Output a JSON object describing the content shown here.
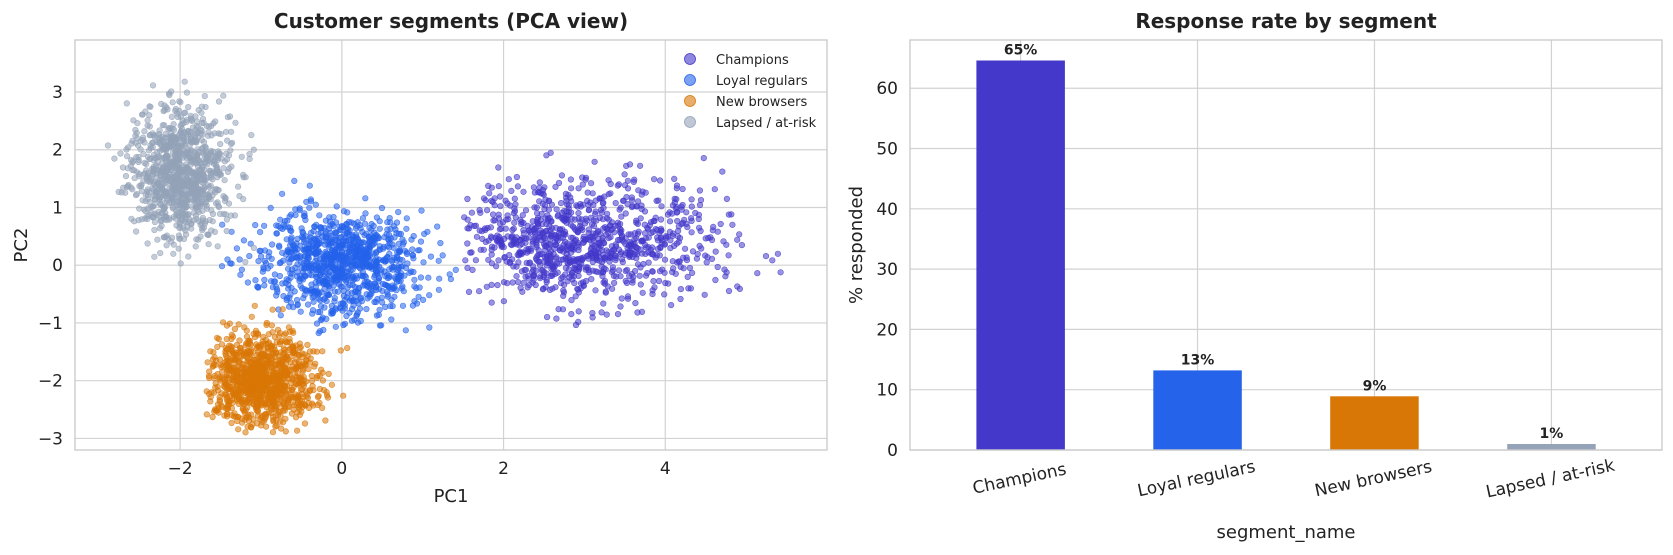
{
  "chart_data": [
    {
      "type": "scatter",
      "title": "Customer segments (PCA view)",
      "xlabel": "PC1",
      "ylabel": "PC2",
      "xlim": [
        -3.3,
        6.0
      ],
      "ylim": [
        -3.2,
        3.9
      ],
      "xticks": [
        -2,
        0,
        2,
        4
      ],
      "yticks": [
        -3,
        -2,
        -1,
        0,
        1,
        2,
        3
      ],
      "xtick_labels": [
        "−2",
        "0",
        "2",
        "4"
      ],
      "ytick_labels": [
        "−3",
        "−2",
        "−1",
        "0",
        "1",
        "2",
        "3"
      ],
      "grid": true,
      "legend_position": "top-right",
      "series": [
        {
          "name": "Champions",
          "color": "#4338ca",
          "center": [
            3.0,
            0.4
          ],
          "spread": [
            0.8,
            0.55
          ],
          "count": 1000,
          "xrange": [
            1.5,
            5.6
          ],
          "yrange": [
            -1.1,
            2.2
          ]
        },
        {
          "name": "Loyal regulars",
          "color": "#2563eb",
          "center": [
            0.0,
            0.05
          ],
          "spread": [
            0.5,
            0.45
          ],
          "count": 1000,
          "xrange": [
            -1.6,
            1.5
          ],
          "yrange": [
            -1.3,
            2.0
          ]
        },
        {
          "name": "New browsers",
          "color": "#d97706",
          "center": [
            -1.0,
            -2.0
          ],
          "spread": [
            0.35,
            0.42
          ],
          "count": 1000,
          "xrange": [
            -1.7,
            1.0
          ],
          "yrange": [
            -2.9,
            -0.7
          ]
        },
        {
          "name": "Lapsed / at-risk",
          "color": "#94a3b8",
          "center": [
            -2.0,
            1.6
          ],
          "spread": [
            0.3,
            0.55
          ],
          "count": 1000,
          "xrange": [
            -3.0,
            -1.0
          ],
          "yrange": [
            0.0,
            3.6
          ]
        }
      ]
    },
    {
      "type": "bar",
      "title": "Response rate by segment",
      "xlabel": "segment_name",
      "ylabel": "% responded",
      "categories": [
        "Champions",
        "Loyal regulars",
        "New browsers",
        "Lapsed / at-risk"
      ],
      "values": [
        64.6,
        13.2,
        8.9,
        1.0
      ],
      "data_labels": [
        "65%",
        "13%",
        "9%",
        "1%"
      ],
      "colors": [
        "#4338ca",
        "#2563eb",
        "#d97706",
        "#94a3b8"
      ],
      "ylim": [
        0,
        68
      ],
      "yticks": [
        0,
        10,
        20,
        30,
        40,
        50,
        60
      ],
      "ytick_labels": [
        "0",
        "10",
        "20",
        "30",
        "40",
        "50",
        "60"
      ],
      "grid": true
    }
  ]
}
